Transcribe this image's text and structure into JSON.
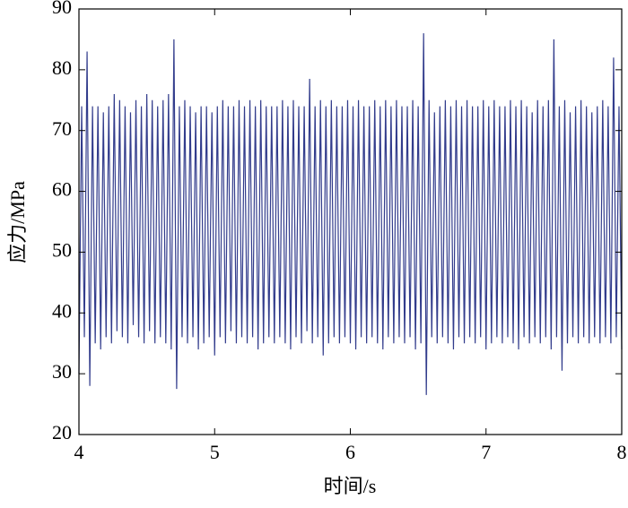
{
  "chart_data": {
    "type": "line",
    "xlabel": "时间/s",
    "ylabel": "应力/MPa",
    "xlim": [
      4,
      8
    ],
    "ylim": [
      20,
      90
    ],
    "xticks": [
      4,
      5,
      6,
      7,
      8
    ],
    "yticks": [
      20,
      30,
      40,
      50,
      60,
      70,
      80,
      90
    ],
    "grid": false,
    "series": [
      {
        "color": "#323c8c",
        "x": [
          4,
          4.02,
          4.04,
          4.06,
          4.08,
          4.1,
          4.12,
          4.14,
          4.16,
          4.18,
          4.2,
          4.22,
          4.24,
          4.26,
          4.28,
          4.3,
          4.32,
          4.34,
          4.36,
          4.38,
          4.4,
          4.42,
          4.44,
          4.46,
          4.48,
          4.5,
          4.52,
          4.54,
          4.56,
          4.58,
          4.6,
          4.62,
          4.64,
          4.66,
          4.68,
          4.7,
          4.72,
          4.74,
          4.76,
          4.78,
          4.8,
          4.82,
          4.84,
          4.86,
          4.88,
          4.9,
          4.92,
          4.94,
          4.96,
          4.98,
          5,
          5.02,
          5.04,
          5.06,
          5.08,
          5.1,
          5.12,
          5.14,
          5.16,
          5.18,
          5.2,
          5.22,
          5.24,
          5.26,
          5.28,
          5.3,
          5.32,
          5.34,
          5.36,
          5.38,
          5.4,
          5.42,
          5.44,
          5.46,
          5.48,
          5.5,
          5.52,
          5.54,
          5.56,
          5.58,
          5.6,
          5.62,
          5.64,
          5.66,
          5.68,
          5.7,
          5.72,
          5.74,
          5.76,
          5.78,
          5.8,
          5.82,
          5.84,
          5.86,
          5.88,
          5.9,
          5.92,
          5.94,
          5.96,
          5.98,
          6,
          6.02,
          6.04,
          6.06,
          6.08,
          6.1,
          6.12,
          6.14,
          6.16,
          6.18,
          6.2,
          6.22,
          6.24,
          6.26,
          6.28,
          6.3,
          6.32,
          6.34,
          6.36,
          6.38,
          6.4,
          6.42,
          6.44,
          6.46,
          6.48,
          6.5,
          6.52,
          6.54,
          6.56,
          6.58,
          6.6,
          6.62,
          6.64,
          6.66,
          6.68,
          6.7,
          6.72,
          6.74,
          6.76,
          6.78,
          6.8,
          6.82,
          6.84,
          6.86,
          6.88,
          6.9,
          6.92,
          6.94,
          6.96,
          6.98,
          7,
          7.02,
          7.04,
          7.06,
          7.08,
          7.1,
          7.12,
          7.14,
          7.16,
          7.18,
          7.2,
          7.22,
          7.24,
          7.26,
          7.28,
          7.3,
          7.32,
          7.34,
          7.36,
          7.38,
          7.4,
          7.42,
          7.44,
          7.46,
          7.48,
          7.5,
          7.52,
          7.54,
          7.56,
          7.58,
          7.6,
          7.62,
          7.64,
          7.66,
          7.68,
          7.7,
          7.72,
          7.74,
          7.76,
          7.78,
          7.8,
          7.82,
          7.84,
          7.86,
          7.88,
          7.9,
          7.92,
          7.94,
          7.96,
          7.98,
          8
        ],
        "values": [
          30,
          74,
          36,
          83,
          28,
          74,
          35,
          74,
          34,
          73,
          36,
          74,
          35,
          76,
          37,
          75,
          36,
          74,
          35,
          73,
          38,
          75,
          36,
          74,
          35,
          76,
          37,
          75,
          35,
          74,
          36,
          75,
          35,
          76,
          34,
          85,
          27.5,
          74,
          36,
          75,
          35,
          74,
          36,
          73,
          34,
          74,
          35,
          74,
          36,
          73,
          33,
          74,
          36,
          75,
          35,
          74,
          37,
          74,
          35,
          75,
          36,
          74,
          35,
          75,
          36,
          74,
          34,
          75,
          35,
          74,
          36,
          74,
          35,
          74,
          36,
          75,
          35,
          74,
          34,
          75,
          36,
          74,
          35,
          74,
          37,
          78.5,
          35,
          74,
          36,
          75,
          33,
          74,
          35,
          75,
          36,
          74,
          35,
          74,
          36,
          75,
          35,
          74,
          34,
          75,
          36,
          74,
          35,
          74,
          36,
          75,
          35,
          74,
          34,
          75,
          36,
          74,
          35,
          75,
          36,
          74,
          35,
          74,
          36,
          75,
          34,
          74,
          35,
          86,
          26.5,
          75,
          36,
          73,
          35,
          74,
          36,
          75,
          35,
          74,
          34,
          75,
          36,
          74,
          35,
          75,
          36,
          74,
          35,
          74,
          36,
          75,
          34,
          74,
          35,
          75,
          36,
          74,
          35,
          74,
          36,
          75,
          35,
          74,
          34,
          75,
          36,
          74,
          35,
          73,
          36,
          75,
          35,
          74,
          36,
          75,
          34,
          85,
          36,
          74,
          30.5,
          75,
          35,
          73,
          36,
          74,
          35,
          75,
          36,
          74,
          35,
          73,
          36,
          74,
          35,
          75,
          36,
          74,
          35,
          82,
          36,
          74,
          34
        ]
      }
    ]
  }
}
